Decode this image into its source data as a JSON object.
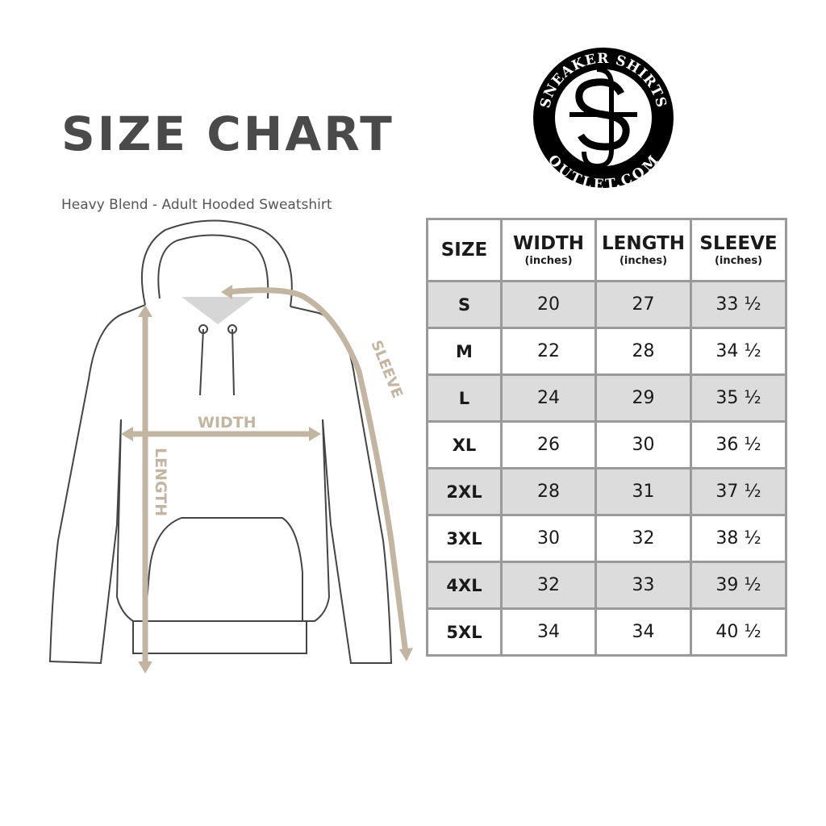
{
  "title": "SIZE CHART",
  "subtitle": "Heavy Blend - Adult Hooded Sweatshirt",
  "logo": {
    "top_text": "SNEAKER SHIRTS",
    "bottom_text": "OUTLET.COM",
    "monogram": "SS"
  },
  "diagram": {
    "width_label": "WIDTH",
    "length_label": "LENGTH",
    "sleeve_label": "SLEEVE",
    "measure_color": "#c2b6a3"
  },
  "table": {
    "headers": [
      {
        "label": "SIZE",
        "unit": ""
      },
      {
        "label": "WIDTH",
        "unit": "(inches)"
      },
      {
        "label": "LENGTH",
        "unit": "(inches)"
      },
      {
        "label": "SLEEVE",
        "unit": "(inches)"
      }
    ],
    "rows": [
      [
        "S",
        "20",
        "27",
        "33 ½"
      ],
      [
        "M",
        "22",
        "28",
        "34 ½"
      ],
      [
        "L",
        "24",
        "29",
        "35 ½"
      ],
      [
        "XL",
        "26",
        "30",
        "36 ½"
      ],
      [
        "2XL",
        "28",
        "31",
        "37 ½"
      ],
      [
        "3XL",
        "30",
        "32",
        "38 ½"
      ],
      [
        "4XL",
        "32",
        "33",
        "39 ½"
      ],
      [
        "5XL",
        "34",
        "34",
        "40 ½"
      ]
    ],
    "shade_color": "#dcdcdc"
  }
}
